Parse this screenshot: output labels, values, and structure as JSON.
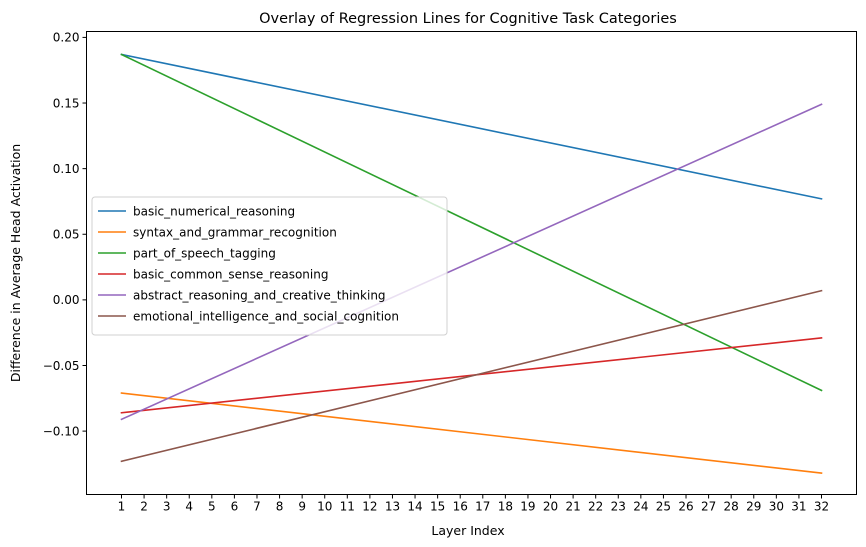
{
  "chart_data": {
    "type": "line",
    "title": "Overlay of Regression Lines for Cognitive Task Categories",
    "xlabel": "Layer Index",
    "ylabel": "Difference in Average Head Activation",
    "x_ticks": [
      1,
      2,
      3,
      4,
      5,
      6,
      7,
      8,
      9,
      10,
      11,
      12,
      13,
      14,
      15,
      16,
      17,
      18,
      19,
      20,
      21,
      22,
      23,
      24,
      25,
      26,
      27,
      28,
      29,
      30,
      31,
      32
    ],
    "xlim": [
      -0.55,
      33.55
    ],
    "y_ticks": [
      -0.1,
      -0.05,
      0.0,
      0.05,
      0.1,
      0.15,
      0.2
    ],
    "y_tick_labels": [
      "−0.10",
      "−0.05",
      "0.00",
      "0.05",
      "0.10",
      "0.15",
      "0.20"
    ],
    "ylim": [
      -0.1483,
      0.2045
    ],
    "grid": false,
    "legend_position": "center-left",
    "series": [
      {
        "name": "basic_numerical_reasoning",
        "color": "#1f77b4",
        "x": [
          1,
          32
        ],
        "y": [
          0.187,
          0.077
        ]
      },
      {
        "name": "syntax_and_grammar_recognition",
        "color": "#ff7f0e",
        "x": [
          1,
          32
        ],
        "y": [
          -0.071,
          -0.132
        ]
      },
      {
        "name": "part_of_speech_tagging",
        "color": "#2ca02c",
        "x": [
          1,
          32
        ],
        "y": [
          0.187,
          -0.069
        ]
      },
      {
        "name": "basic_common_sense_reasoning",
        "color": "#d62728",
        "x": [
          1,
          32
        ],
        "y": [
          -0.086,
          -0.029
        ]
      },
      {
        "name": "abstract_reasoning_and_creative_thinking",
        "color": "#9467bd",
        "x": [
          1,
          32
        ],
        "y": [
          -0.091,
          0.149
        ]
      },
      {
        "name": "emotional_intelligence_and_social_cognition",
        "color": "#8c564b",
        "x": [
          1,
          32
        ],
        "y": [
          -0.123,
          0.007
        ]
      }
    ]
  }
}
